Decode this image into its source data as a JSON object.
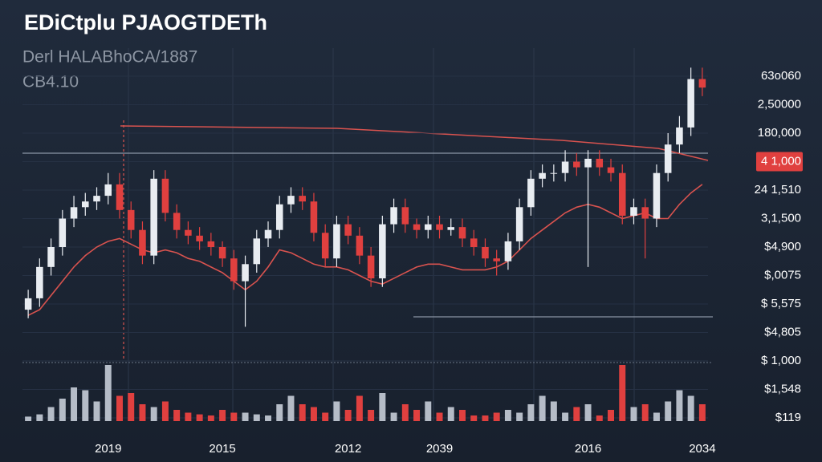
{
  "chart_data": {
    "type": "candlestick",
    "title": "EDiCtplu PJAOGTDETh",
    "subtitle": "Derl HALABhoCA/1887",
    "annotation": "CB4.10",
    "categories": [
      null,
      null,
      null,
      null,
      null,
      null,
      null,
      "2019",
      null,
      null,
      null,
      null,
      null,
      null,
      null,
      null,
      null,
      "2015",
      null,
      null,
      null,
      null,
      null,
      null,
      null,
      null,
      null,
      null,
      "2012",
      null,
      null,
      null,
      null,
      null,
      null,
      null,
      "2039",
      null,
      null,
      null,
      null,
      null,
      null,
      null,
      null,
      null,
      null,
      null,
      null,
      "2016",
      null,
      null,
      null,
      null,
      null,
      null,
      null,
      null,
      null,
      "2034"
    ],
    "open": [
      3.8,
      4.2,
      5.3,
      6.0,
      7.0,
      7.4,
      7.6,
      7.8,
      8.2,
      7.3,
      6.6,
      5.7,
      8.4,
      7.2,
      6.6,
      6.4,
      6.2,
      6.0,
      5.6,
      4.8,
      5.4,
      6.3,
      6.6,
      7.5,
      7.8,
      7.6,
      6.5,
      5.6,
      6.8,
      6.4,
      5.7,
      4.9,
      6.8,
      7.4,
      6.8,
      6.6,
      6.8,
      6.6,
      6.7,
      6.3,
      6.0,
      5.6,
      5.5,
      6.2,
      7.4,
      8.4,
      8.6,
      8.6,
      9.0,
      8.8,
      9.1,
      8.8,
      8.6,
      7.1,
      7.4,
      7.0,
      8.6,
      9.6,
      10.2,
      11.9
    ],
    "high": [
      4.5,
      5.6,
      6.3,
      7.3,
      7.8,
      7.9,
      8.1,
      8.6,
      8.6,
      7.6,
      6.9,
      8.7,
      8.7,
      7.5,
      6.9,
      6.7,
      6.5,
      6.2,
      5.9,
      5.7,
      6.6,
      6.9,
      7.8,
      8.1,
      8.1,
      7.9,
      6.8,
      7.1,
      7.1,
      6.7,
      6.0,
      7.1,
      7.7,
      7.7,
      7.0,
      7.1,
      7.1,
      7.0,
      7.0,
      6.6,
      6.3,
      5.9,
      6.5,
      7.7,
      8.7,
      8.9,
      8.9,
      9.4,
      9.3,
      9.4,
      9.4,
      9.1,
      8.9,
      7.7,
      7.7,
      8.9,
      10.0,
      10.6,
      12.3,
      12.3
    ],
    "low": [
      3.5,
      3.9,
      5.0,
      5.7,
      6.7,
      7.1,
      7.3,
      7.5,
      7.0,
      6.3,
      5.4,
      5.4,
      6.9,
      6.3,
      6.1,
      5.9,
      5.7,
      5.3,
      4.5,
      3.2,
      5.1,
      6.0,
      6.3,
      7.2,
      7.3,
      6.2,
      5.3,
      5.3,
      6.1,
      5.4,
      4.6,
      4.6,
      6.5,
      6.5,
      6.3,
      6.3,
      6.3,
      6.4,
      6.0,
      5.7,
      5.3,
      5.0,
      5.2,
      5.9,
      7.1,
      8.1,
      8.3,
      8.3,
      8.5,
      5.3,
      8.5,
      8.3,
      6.8,
      6.8,
      5.6,
      6.7,
      8.3,
      9.3,
      9.9,
      11.3
    ],
    "close": [
      4.2,
      5.3,
      6.0,
      7.0,
      7.4,
      7.6,
      7.8,
      8.2,
      7.3,
      6.6,
      5.7,
      8.4,
      7.2,
      6.6,
      6.4,
      6.2,
      6.0,
      5.6,
      4.8,
      5.4,
      6.3,
      6.6,
      7.5,
      7.8,
      7.6,
      6.5,
      5.6,
      6.8,
      6.4,
      5.7,
      4.9,
      6.8,
      7.4,
      6.8,
      6.6,
      6.8,
      6.6,
      6.7,
      6.3,
      6.0,
      5.6,
      5.5,
      6.2,
      7.4,
      8.4,
      8.6,
      8.6,
      9.0,
      8.8,
      9.1,
      8.8,
      8.6,
      7.1,
      7.4,
      7.0,
      8.6,
      9.6,
      10.2,
      11.9,
      11.6
    ],
    "ma": [
      3.6,
      3.8,
      4.3,
      4.8,
      5.3,
      5.7,
      6.0,
      6.2,
      6.3,
      6.1,
      5.9,
      5.8,
      5.9,
      5.8,
      5.6,
      5.5,
      5.3,
      5.1,
      4.8,
      4.5,
      4.8,
      5.3,
      5.9,
      5.8,
      5.6,
      5.4,
      5.3,
      5.3,
      5.2,
      5.0,
      4.8,
      4.7,
      4.9,
      5.1,
      5.3,
      5.4,
      5.4,
      5.3,
      5.2,
      5.2,
      5.2,
      5.3,
      5.5,
      5.9,
      6.3,
      6.6,
      6.9,
      7.2,
      7.4,
      7.5,
      7.4,
      7.2,
      7.0,
      7.1,
      7.2,
      7.0,
      7.0,
      7.5,
      7.9,
      8.2
    ],
    "volume": {
      "axis": "y2",
      "values": [
        8,
        12,
        25,
        40,
        60,
        55,
        35,
        100,
        45,
        50,
        30,
        25,
        35,
        20,
        15,
        12,
        10,
        20,
        15,
        15,
        12,
        10,
        30,
        45,
        30,
        25,
        15,
        35,
        20,
        45,
        20,
        50,
        15,
        30,
        20,
        35,
        15,
        25,
        20,
        10,
        10,
        15,
        20,
        15,
        30,
        45,
        35,
        15,
        25,
        30,
        10,
        20,
        100,
        25,
        30,
        15,
        35,
        55,
        45,
        30
      ]
    },
    "up_color": "#e8ecf1",
    "down_color": "#e0403f",
    "ma_color": "#d9534f",
    "ylim": [
      0,
      12
    ],
    "yticks": [
      {
        "value": 0,
        "label": "$119"
      },
      {
        "value": 1,
        "label": "$1,548"
      },
      {
        "value": 2,
        "label": "$ 1,000"
      },
      {
        "value": 3,
        "label": "$4,805"
      },
      {
        "value": 4,
        "label": "$ 5,575"
      },
      {
        "value": 5,
        "label": "$,0075"
      },
      {
        "value": 6,
        "label": "$4,900"
      },
      {
        "value": 7,
        "label": "3,1,500"
      },
      {
        "value": 8,
        "label": "24 1,510"
      },
      {
        "value": 9,
        "label": "4 1,000"
      },
      {
        "value": 10,
        "label": "180,000"
      },
      {
        "value": 11,
        "label": "2,50000"
      },
      {
        "value": 12,
        "label": "63o060"
      }
    ],
    "highlight_tick": 9,
    "y2lim": [
      0,
      100
    ],
    "grid": true
  }
}
